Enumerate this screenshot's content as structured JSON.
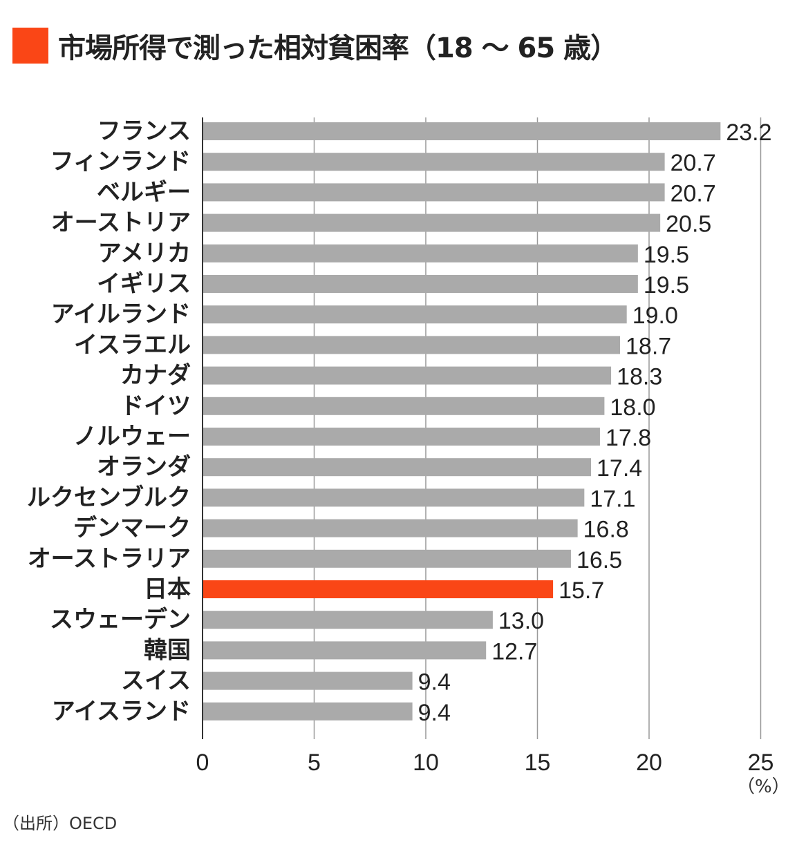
{
  "title": "市場所得で測った相対貧困率（18 ～ 65 歳）",
  "source": "（出所）OECD",
  "unit": "（%）",
  "colors": {
    "bar": "#aaaaaa",
    "highlight": "#fa4616",
    "grid": "#999999",
    "axis": "#333333"
  },
  "chart_data": {
    "type": "bar",
    "orientation": "horizontal",
    "title": "市場所得で測った相対貧困率（18 ～ 65 歳）",
    "xlabel": "（%）",
    "ylabel": "",
    "xlim": [
      0,
      25
    ],
    "xticks": [
      0,
      5,
      10,
      15,
      20,
      25
    ],
    "grid": true,
    "highlight": "日本",
    "categories": [
      "フランス",
      "フィンランド",
      "ベルギー",
      "オーストリア",
      "アメリカ",
      "イギリス",
      "アイルランド",
      "イスラエル",
      "カナダ",
      "ドイツ",
      "ノルウェー",
      "オランダ",
      "ルクセンブルク",
      "デンマーク",
      "オーストラリア",
      "日本",
      "スウェーデン",
      "韓国",
      "スイス",
      "アイスランド"
    ],
    "values": [
      23.2,
      20.7,
      20.7,
      20.5,
      19.5,
      19.5,
      19.0,
      18.7,
      18.3,
      18.0,
      17.8,
      17.4,
      17.1,
      16.8,
      16.5,
      15.7,
      13.0,
      12.7,
      9.4,
      9.4
    ],
    "value_labels": [
      "23.2",
      "20.7",
      "20.7",
      "20.5",
      "19.5",
      "19.5",
      "19.0",
      "18.7",
      "18.3",
      "18.0",
      "17.8",
      "17.4",
      "17.1",
      "16.8",
      "16.5",
      "15.7",
      "13.0",
      "12.7",
      "9.4",
      "9.4"
    ]
  }
}
